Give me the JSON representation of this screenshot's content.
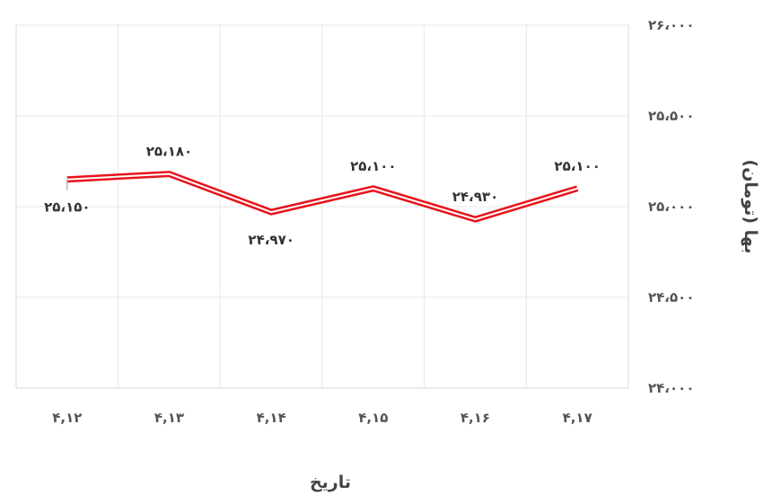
{
  "chart_data": {
    "type": "line",
    "title": "",
    "xlabel": "تاریخ",
    "ylabel": "بها (تومان)",
    "categories": [
      "۴,۱۲",
      "۴,۱۳",
      "۴,۱۴",
      "۴,۱۵",
      "۴,۱۶",
      "۴,۱۷"
    ],
    "values": [
      25150,
      25180,
      24970,
      25100,
      24930,
      25100
    ],
    "data_labels": [
      "۲۵،۱۵۰",
      "۲۵،۱۸۰",
      "۲۴،۹۷۰",
      "۲۵،۱۰۰",
      "۲۴،۹۳۰",
      "۲۵،۱۰۰"
    ],
    "ylim": [
      24000,
      26000
    ],
    "yticks": [
      24000,
      24500,
      25000,
      25500,
      26000
    ],
    "ytick_labels": [
      "۲۴،۰۰۰",
      "۲۴،۵۰۰",
      "۲۵،۰۰۰",
      "۲۵،۵۰۰",
      "۲۶،۰۰۰"
    ],
    "y_axis_side": "right",
    "grid": true,
    "line_color": "#e8141b",
    "line_style": "double"
  }
}
